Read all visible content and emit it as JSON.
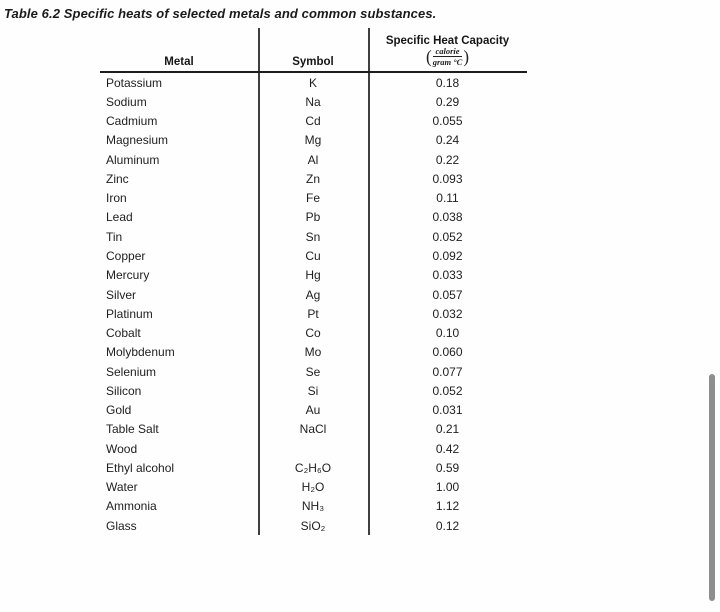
{
  "title": "Table 6.2 Specific heats of selected metals and common substances.",
  "table": {
    "headers": {
      "metal": "Metal",
      "symbol": "Symbol",
      "capacity_title": "Specific Heat Capacity",
      "unit_paren_open": "(",
      "unit_numerator": "calorie",
      "unit_denominator": "gram °C",
      "unit_paren_close": ")"
    },
    "rows": [
      {
        "metal": "Potassium",
        "symbol": "K",
        "value": "0.18"
      },
      {
        "metal": "Sodium",
        "symbol": "Na",
        "value": "0.29"
      },
      {
        "metal": "Cadmium",
        "symbol": "Cd",
        "value": "0.055"
      },
      {
        "metal": "Magnesium",
        "symbol": "Mg",
        "value": "0.24"
      },
      {
        "metal": "Aluminum",
        "symbol": "Al",
        "value": "0.22"
      },
      {
        "metal": "Zinc",
        "symbol": "Zn",
        "value": "0.093"
      },
      {
        "metal": "Iron",
        "symbol": "Fe",
        "value": "0.11"
      },
      {
        "metal": "Lead",
        "symbol": "Pb",
        "value": "0.038"
      },
      {
        "metal": "Tin",
        "symbol": "Sn",
        "value": "0.052"
      },
      {
        "metal": "Copper",
        "symbol": "Cu",
        "value": "0.092"
      },
      {
        "metal": "Mercury",
        "symbol": "Hg",
        "value": "0.033"
      },
      {
        "metal": "Silver",
        "symbol": "Ag",
        "value": "0.057"
      },
      {
        "metal": "Platinum",
        "symbol": "Pt",
        "value": "0.032"
      },
      {
        "metal": "Cobalt",
        "symbol": "Co",
        "value": "0.10"
      },
      {
        "metal": "Molybdenum",
        "symbol": "Mo",
        "value": "0.060"
      },
      {
        "metal": "Selenium",
        "symbol": "Se",
        "value": "0.077"
      },
      {
        "metal": "Silicon",
        "symbol": "Si",
        "value": "0.052"
      },
      {
        "metal": "Gold",
        "symbol": "Au",
        "value": "0.031"
      },
      {
        "metal": "Table Salt",
        "symbol": "NaCl",
        "value": "0.21"
      },
      {
        "metal": "Wood",
        "symbol": "",
        "value": "0.42"
      },
      {
        "metal": "Ethyl alcohol",
        "symbol": "C₂H₆O",
        "value": "0.59"
      },
      {
        "metal": "Water",
        "symbol": "H₂O",
        "value": "1.00"
      },
      {
        "metal": "Ammonia",
        "symbol": "NH₃",
        "value": "1.12"
      },
      {
        "metal": "Glass",
        "symbol": "SiO₂",
        "value": "0.12"
      }
    ]
  },
  "colors": {
    "background": "#fefefe",
    "text": "#1e1e1e",
    "header_rule": "#1c1c1c",
    "column_divider": "#3f3f3f",
    "scrollbar": "#8e8e8e"
  }
}
